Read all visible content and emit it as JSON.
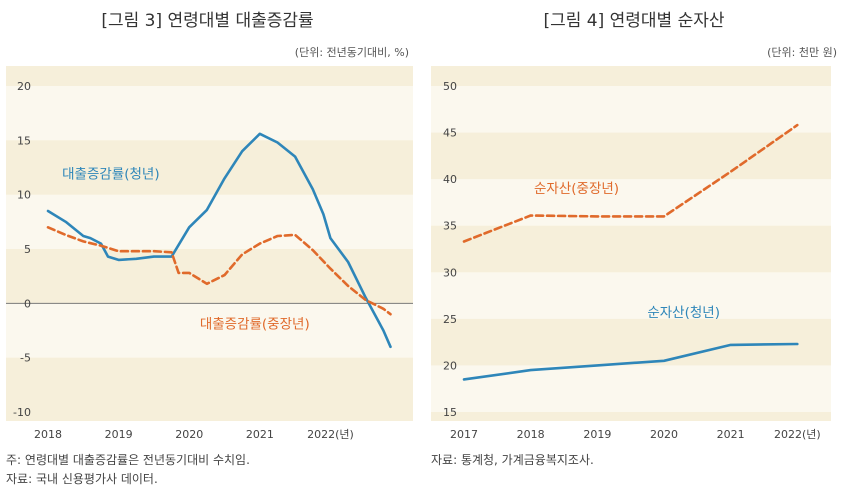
{
  "colors": {
    "youth": "#2e86b9",
    "middle": "#e06a2b",
    "plot_bg": "#f6efda",
    "band": "#fbf8ee",
    "zero_line": "#7a7a7a"
  },
  "chart_data": [
    {
      "type": "line",
      "title": "[그림 3] 연령대별 대출증감률",
      "unit": "(단위: 전년동기대비, %)",
      "xlabel": "",
      "ylabel": "",
      "xlim": [
        2018,
        2022.9
      ],
      "ylim": [
        -10,
        20
      ],
      "yticks": [
        "20",
        "15",
        "10",
        "5",
        "0",
        "-5",
        "-10"
      ],
      "xticks": [
        {
          "x": 2018,
          "label": "2018"
        },
        {
          "x": 2019,
          "label": "2019"
        },
        {
          "x": 2020,
          "label": "2020"
        },
        {
          "x": 2021,
          "label": "2021"
        },
        {
          "x": 2022,
          "label": "2022(년)"
        }
      ],
      "series": [
        {
          "name": "대출증감률(청년)",
          "style": "solid",
          "x": [
            2018.0,
            2018.25,
            2018.5,
            2018.6,
            2018.75,
            2018.85,
            2019.0,
            2019.25,
            2019.5,
            2019.75,
            2020.0,
            2020.25,
            2020.5,
            2020.75,
            2021.0,
            2021.25,
            2021.5,
            2021.75,
            2021.9,
            2022.0,
            2022.25,
            2022.5,
            2022.75,
            2022.85
          ],
          "y": [
            8.5,
            7.5,
            6.2,
            6.0,
            5.5,
            4.3,
            4.0,
            4.1,
            4.3,
            4.3,
            7.0,
            8.6,
            11.5,
            14.0,
            15.6,
            14.8,
            13.5,
            10.5,
            8.2,
            6.0,
            3.8,
            0.5,
            -2.5,
            -4.0
          ]
        },
        {
          "name": "대출증감률(중장년)",
          "style": "dashed",
          "x": [
            2018.0,
            2018.25,
            2018.5,
            2018.75,
            2019.0,
            2019.25,
            2019.5,
            2019.75,
            2019.85,
            2020.0,
            2020.25,
            2020.5,
            2020.75,
            2021.0,
            2021.25,
            2021.5,
            2021.75,
            2022.0,
            2022.25,
            2022.5,
            2022.75,
            2022.85
          ],
          "y": [
            7.0,
            6.3,
            5.7,
            5.3,
            4.8,
            4.8,
            4.8,
            4.7,
            2.8,
            2.8,
            1.8,
            2.6,
            4.5,
            5.5,
            6.2,
            6.3,
            4.9,
            3.2,
            1.6,
            0.3,
            -0.5,
            -1.0
          ]
        }
      ],
      "labels": [
        {
          "text": "대출증감률(청년)",
          "series": 0,
          "x": 2018.2,
          "y": 11.5
        },
        {
          "text": "대출증감률(중장년)",
          "series": 1,
          "x": 2020.15,
          "y": -2.3
        }
      ],
      "grid": "bands",
      "legend": "inline"
    },
    {
      "type": "line",
      "title": "[그림 4] 연령대별 순자산",
      "unit": "(단위: 천만 원)",
      "xlabel": "",
      "ylabel": "",
      "xlim": [
        2016.55,
        2022.55
      ],
      "ylim": [
        15,
        50
      ],
      "yticks": [
        "50",
        "45",
        "40",
        "35",
        "30",
        "25",
        "20",
        "15"
      ],
      "xticks": [
        {
          "x": 2017,
          "label": "2017"
        },
        {
          "x": 2018,
          "label": "2018"
        },
        {
          "x": 2019,
          "label": "2019"
        },
        {
          "x": 2020,
          "label": "2020"
        },
        {
          "x": 2021,
          "label": "2021"
        },
        {
          "x": 2022,
          "label": "2022(년)"
        }
      ],
      "series": [
        {
          "name": "순자산(중장년)",
          "style": "dashed",
          "x": [
            2017,
            2018,
            2019,
            2020,
            2021,
            2022
          ],
          "y": [
            33.3,
            36.1,
            36.0,
            36.0,
            40.8,
            45.8
          ]
        },
        {
          "name": "순자산(청년)",
          "style": "solid",
          "x": [
            2017,
            2018,
            2019,
            2020,
            2021,
            2022
          ],
          "y": [
            18.5,
            19.5,
            20.0,
            20.5,
            22.2,
            22.3
          ]
        }
      ],
      "labels": [
        {
          "text": "순자산(중장년)",
          "series": 0,
          "x": 2018.05,
          "y": 38.5
        },
        {
          "text": "순자산(청년)",
          "series": 1,
          "x": 2019.75,
          "y": 25.2
        }
      ],
      "grid": "bands",
      "legend": "inline"
    }
  ],
  "notes": {
    "left_note": "주: 연령대별 대출증감률은 전년동기대비 수치임.",
    "left_source": "자료: 국내 신용평가사 데이터.",
    "right_source": "자료: 통계청, 가계금융복지조사."
  }
}
